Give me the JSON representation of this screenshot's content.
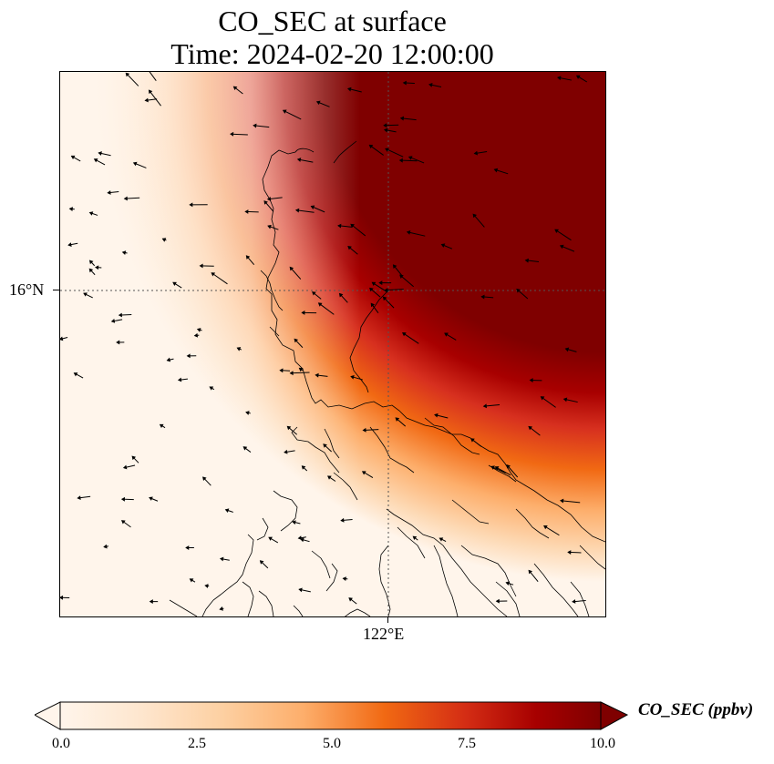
{
  "title_line1": "CO_SEC at surface",
  "title_line2": "Time: 2024-02-20 12:00:00",
  "map": {
    "lat_tick": "16°N",
    "lon_tick": "122°E",
    "field": "CO_SEC concentration with surface wind vectors",
    "high_region": "northeast",
    "colormap": [
      "#fff5eb",
      "#fdd9b4",
      "#fdae6b",
      "#f16913",
      "#d42d14",
      "#a70000",
      "#7f0000"
    ]
  },
  "colorbar": {
    "label": "CO_SEC (ppbv)",
    "min": 0.0,
    "max": 10.0,
    "ticks": [
      "0.0",
      "2.5",
      "5.0",
      "7.5",
      "10.0"
    ],
    "extend": "both"
  }
}
